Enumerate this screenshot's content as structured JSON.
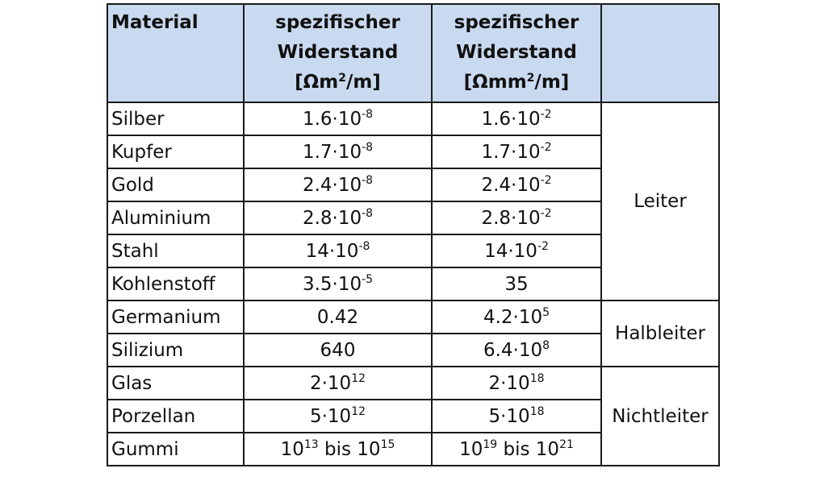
{
  "header": {
    "material": "Material",
    "col1_line1": "spezifischer",
    "col1_line2": "Widerstand",
    "col1_unit_a": "[Ωm",
    "col1_unit_sup": "2",
    "col1_unit_b": "/m]",
    "col2_line1": "spezifischer",
    "col2_line2": "Widerstand",
    "col2_unit_a": "[Ωmm",
    "col2_unit_sup": "2",
    "col2_unit_b": "/m]",
    "col3": ""
  },
  "rows": [
    {
      "material": "Silber",
      "r1_base": "1.6·10",
      "r1_exp": "-8",
      "r2_base": "1.6·10",
      "r2_exp": "-2"
    },
    {
      "material": "Kupfer",
      "r1_base": "1.7·10",
      "r1_exp": "-8",
      "r2_base": "1.7·10",
      "r2_exp": "-2"
    },
    {
      "material": "Gold",
      "r1_base": "2.4·10",
      "r1_exp": "-8",
      "r2_base": "2.4·10",
      "r2_exp": "-2"
    },
    {
      "material": "Aluminium",
      "r1_base": "2.8·10",
      "r1_exp": "-8",
      "r2_base": "2.8·10",
      "r2_exp": "-2"
    },
    {
      "material": "Stahl",
      "r1_base": "14·10",
      "r1_exp": "-8",
      "r2_base": "14·10",
      "r2_exp": "-2"
    },
    {
      "material": "Kohlenstoff",
      "r1_base": "3.5·10",
      "r1_exp": "-5",
      "r2_base": "35",
      "r2_exp": ""
    },
    {
      "material": "Germanium",
      "r1_base": "0.42",
      "r1_exp": "",
      "r2_base": "4.2·10",
      "r2_exp": "5"
    },
    {
      "material": "Silizium",
      "r1_base": "640",
      "r1_exp": "",
      "r2_base": "6.4·10",
      "r2_exp": "8"
    },
    {
      "material": "Glas",
      "r1_base": "2·10",
      "r1_exp": "12",
      "r2_base": "2·10",
      "r2_exp": "18"
    },
    {
      "material": "Porzellan",
      "r1_base": "5·10",
      "r1_exp": "12",
      "r2_base": "5·10",
      "r2_exp": "18"
    },
    {
      "material": "Gummi",
      "r1_a": "10",
      "r1_a_exp": "13",
      "r1_mid": " bis 10",
      "r1_b_exp": "15",
      "r2_a": "10",
      "r2_a_exp": "19",
      "r2_mid": " bis 10",
      "r2_b_exp": "21"
    }
  ],
  "categories": {
    "leiter": "Leiter",
    "halbleiter": "Halbleiter",
    "nichtleiter": "Nichtleiter"
  }
}
